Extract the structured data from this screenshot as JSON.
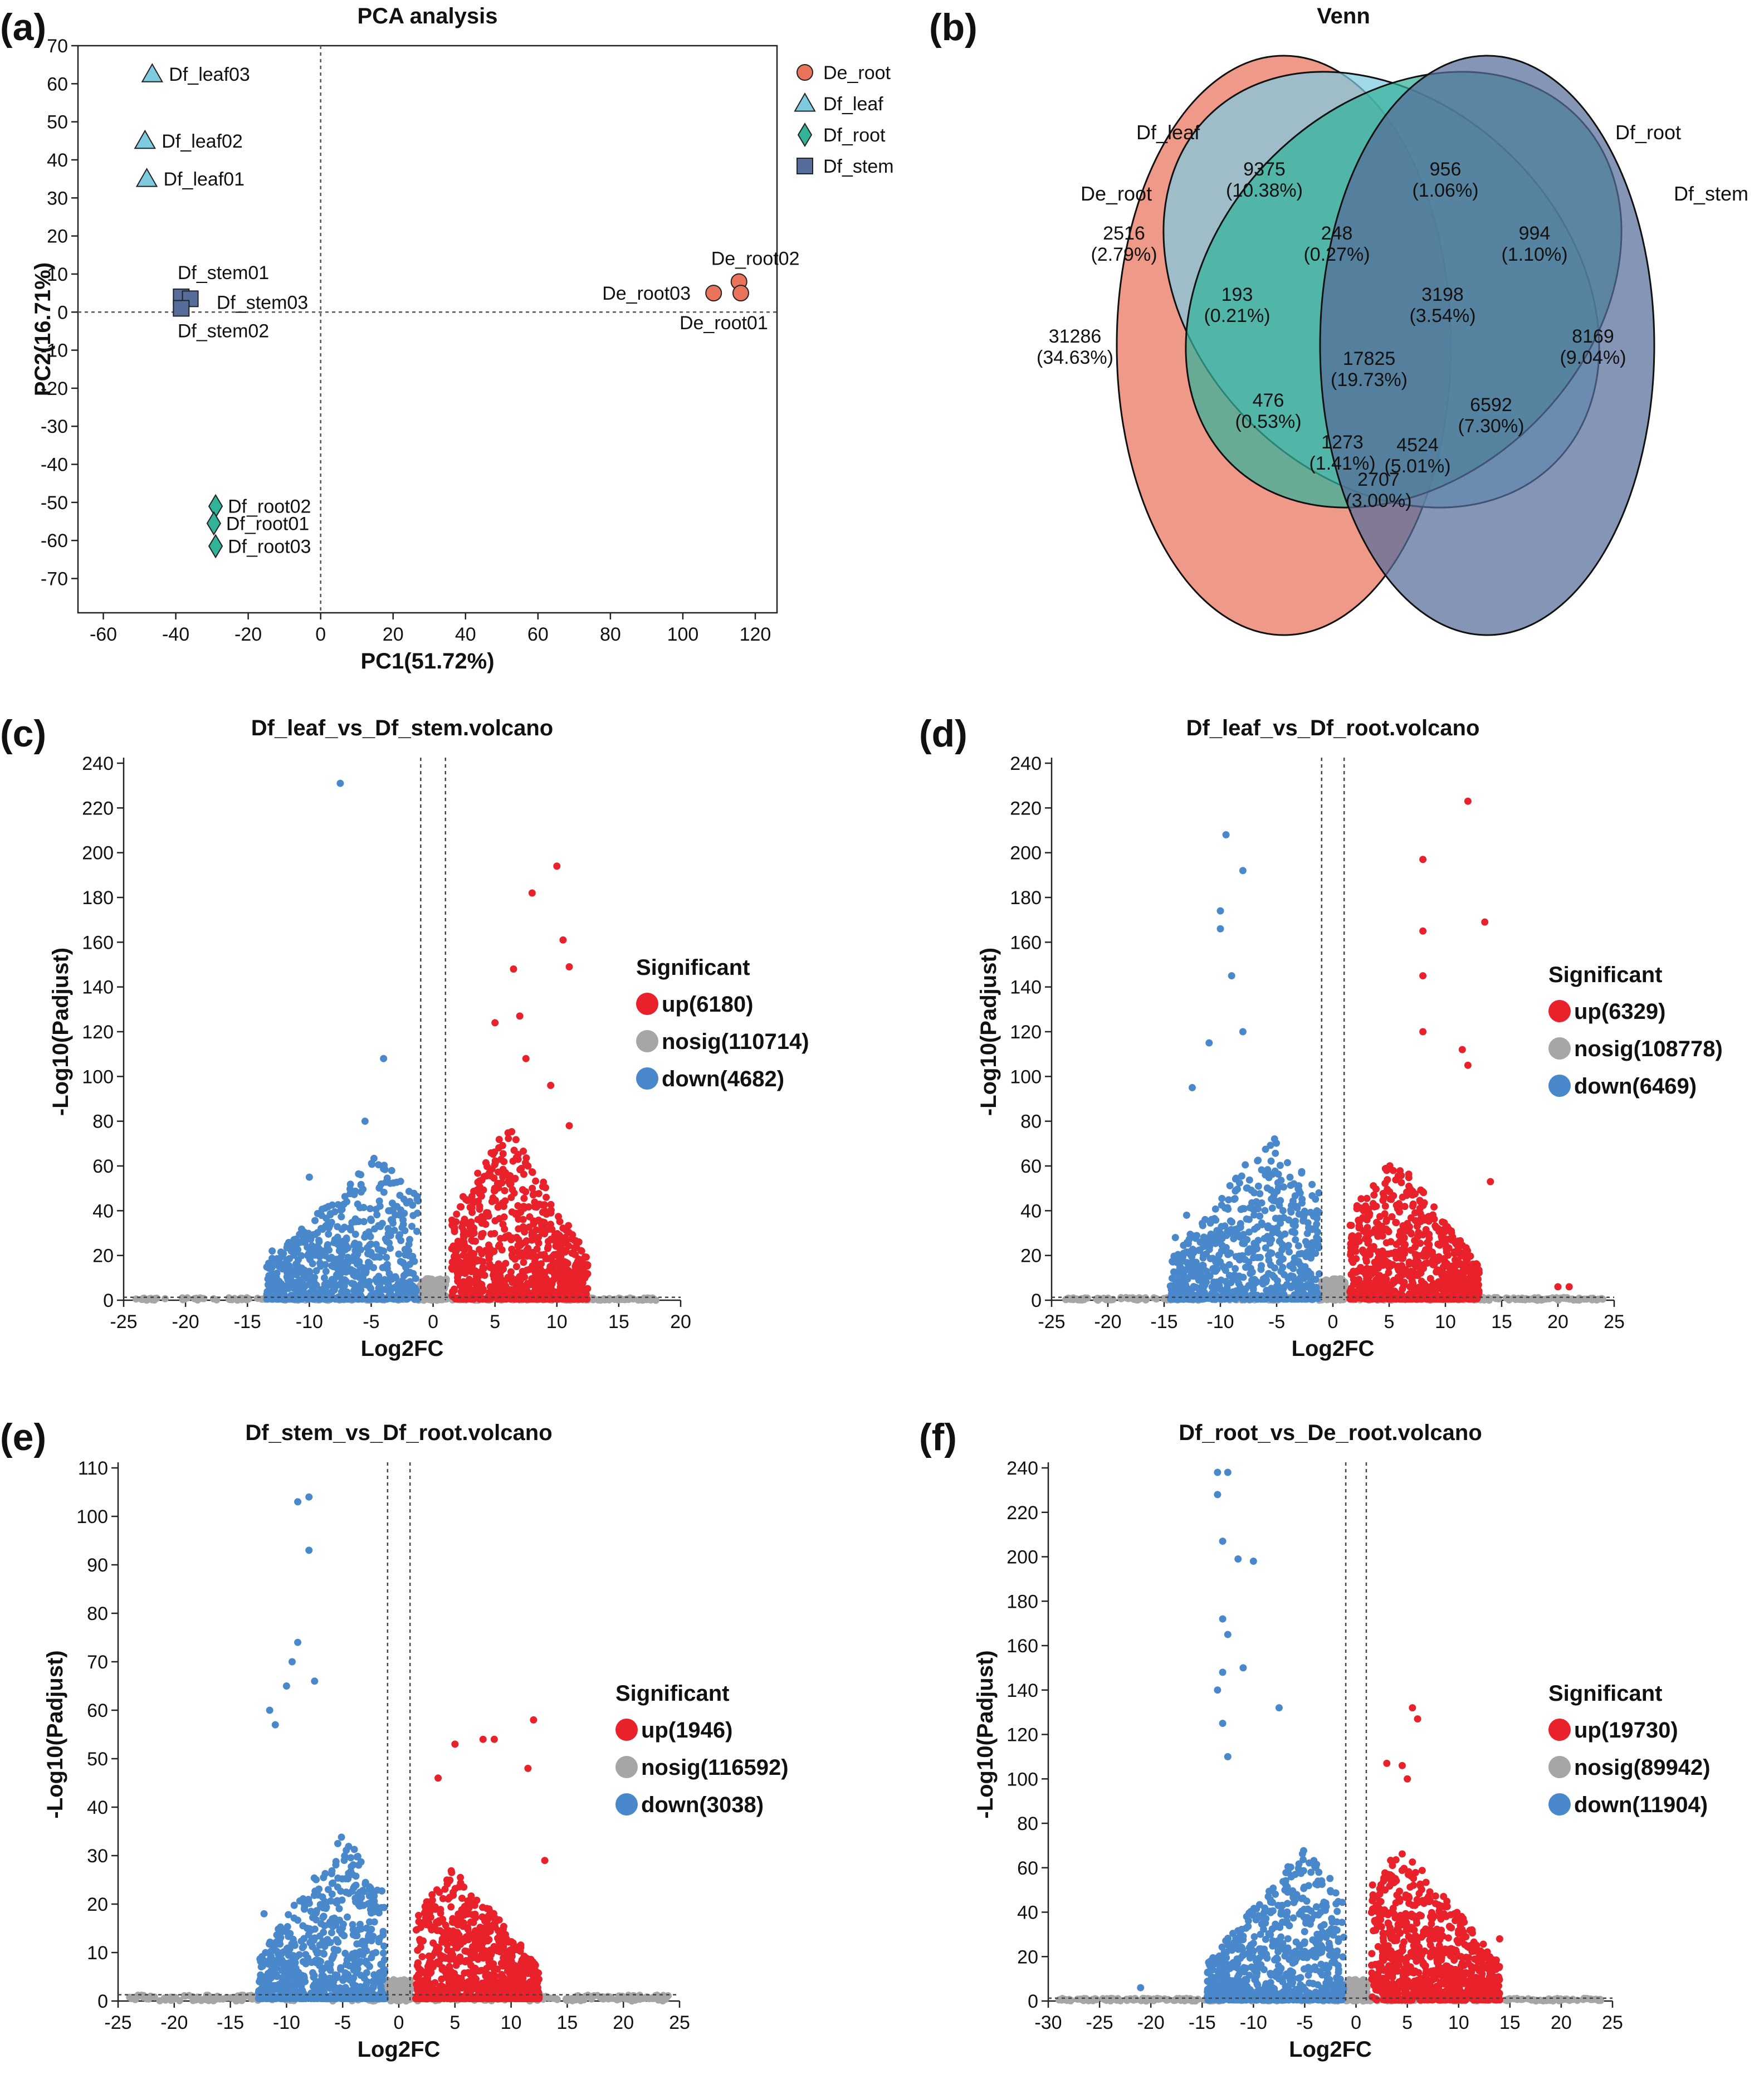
{
  "panels": {
    "a": "(a)",
    "b": "(b)",
    "c": "(c)",
    "d": "(d)",
    "e": "(e)",
    "f": "(f)"
  },
  "colors": {
    "De_root": "#e9735b",
    "Df_leaf": "#7ecbe0",
    "Df_root": "#33b29a",
    "Df_stem": "#566c9a",
    "up": "#e8212b",
    "nosig": "#a6a6a6",
    "down": "#4a88cc"
  },
  "chart_data": [
    {
      "id": "pca",
      "type": "scatter",
      "title": "PCA analysis",
      "xlabel": "PC1(51.72%)",
      "ylabel": "PC2(16.71%)",
      "xlim": [
        -67,
        126
      ],
      "ylim": [
        -79,
        70
      ],
      "xticks": [
        -60,
        -40,
        -20,
        0,
        20,
        40,
        60,
        80,
        100,
        120
      ],
      "yticks": [
        70,
        60,
        50,
        40,
        30,
        20,
        10,
        0,
        -10,
        -20,
        -30,
        -40,
        -50,
        -60,
        -70
      ],
      "legend": [
        "De_root",
        "Df_leaf",
        "Df_root",
        "Df_stem"
      ],
      "points": [
        {
          "label": "Df_leaf03",
          "group": "Df_leaf",
          "x": -46.5,
          "y": 62.5
        },
        {
          "label": "Df_leaf02",
          "group": "Df_leaf",
          "x": -48.5,
          "y": 45.0
        },
        {
          "label": "Df_leaf01",
          "group": "Df_leaf",
          "x": -48.0,
          "y": 35.0
        },
        {
          "label": "Df_stem01",
          "group": "Df_stem",
          "x": -38.5,
          "y": 4.0
        },
        {
          "label": "Df_stem03",
          "group": "Df_stem",
          "x": -36.0,
          "y": 3.5
        },
        {
          "label": "Df_stem02",
          "group": "Df_stem",
          "x": -38.5,
          "y": 1.0
        },
        {
          "label": "De_root02",
          "group": "De_root",
          "x": 115.5,
          "y": 8.0
        },
        {
          "label": "De_root03",
          "group": "De_root",
          "x": 108.5,
          "y": 5.0
        },
        {
          "label": "De_root01",
          "group": "De_root",
          "x": 116.0,
          "y": 5.0
        },
        {
          "label": "Df_root02",
          "group": "Df_root",
          "x": -29.0,
          "y": -51.0
        },
        {
          "label": "Df_root01",
          "group": "Df_root",
          "x": -29.5,
          "y": -55.5
        },
        {
          "label": "Df_root03",
          "group": "Df_root",
          "x": -29.0,
          "y": -61.5
        }
      ]
    },
    {
      "id": "venn",
      "type": "venn",
      "title": "Venn",
      "sets": [
        "De_root",
        "Df_leaf",
        "Df_root",
        "Df_stem"
      ],
      "regions": [
        {
          "sets": [
            "Df_leaf"
          ],
          "count": "9375",
          "pct": "(10.38%)"
        },
        {
          "sets": [
            "Df_root"
          ],
          "count": "956",
          "pct": "(1.06%)"
        },
        {
          "sets": [
            "De_root",
            "Df_leaf"
          ],
          "count": "2516",
          "pct": "(2.79%)"
        },
        {
          "sets": [
            "Df_leaf",
            "Df_root"
          ],
          "count": "248",
          "pct": "(0.27%)"
        },
        {
          "sets": [
            "Df_root",
            "Df_stem"
          ],
          "count": "994",
          "pct": "(1.10%)"
        },
        {
          "sets": [
            "De_root"
          ],
          "count": "31286",
          "pct": "(34.63%)"
        },
        {
          "sets": [
            "De_root",
            "Df_leaf",
            "Df_root"
          ],
          "count": "193",
          "pct": "(0.21%)"
        },
        {
          "sets": [
            "Df_leaf",
            "Df_root",
            "Df_stem"
          ],
          "count": "3198",
          "pct": "(3.54%)"
        },
        {
          "sets": [
            "Df_stem"
          ],
          "count": "8169",
          "pct": "(9.04%)"
        },
        {
          "sets": [
            "De_root",
            "Df_leaf",
            "Df_root",
            "Df_stem"
          ],
          "count": "17825",
          "pct": "(19.73%)"
        },
        {
          "sets": [
            "De_root",
            "Df_root"
          ],
          "count": "476",
          "pct": "(0.53%)"
        },
        {
          "sets": [
            "Df_leaf",
            "Df_stem"
          ],
          "count": "6592",
          "pct": "(7.30%)"
        },
        {
          "sets": [
            "De_root",
            "Df_root",
            "Df_stem"
          ],
          "count": "1273",
          "pct": "(1.41%)"
        },
        {
          "sets": [
            "De_root",
            "Df_leaf",
            "Df_stem"
          ],
          "count": "4524",
          "pct": "(5.01%)"
        },
        {
          "sets": [
            "De_root",
            "Df_stem"
          ],
          "count": "2707",
          "pct": "(3.00%)"
        }
      ]
    },
    {
      "id": "volcano_c",
      "type": "scatter",
      "title": "Df_leaf_vs_Df_stem.volcano",
      "xlabel": "Log2FC",
      "ylabel": "-Log10(Padjust)",
      "xlim": [
        -25,
        20
      ],
      "ylim": [
        0,
        240
      ],
      "xticks": [
        -25,
        -20,
        -15,
        -10,
        -5,
        0,
        5,
        10,
        15,
        20
      ],
      "yticks": [
        0,
        20,
        40,
        60,
        80,
        100,
        120,
        140,
        160,
        180,
        200,
        220,
        240
      ],
      "fc_threshold": 1,
      "p_threshold_line": 1.3,
      "legend_title": "Significant",
      "legend": [
        {
          "key": "up",
          "label": "up(6180)"
        },
        {
          "key": "nosig",
          "label": "nosig(110714)"
        },
        {
          "key": "down",
          "label": "down(4682)"
        }
      ],
      "up_profile": {
        "xmin": 1.5,
        "xmax": 12.5,
        "peakx": 6,
        "peaky": 80,
        "maxy": 195
      },
      "down_profile": {
        "xmin": -13.5,
        "xmax": -1.2,
        "peakx": -4.5,
        "peaky": 65,
        "maxy": 231
      },
      "nosig_xlim": [
        -24,
        18
      ],
      "highlights": [
        {
          "x": -7.5,
          "y": 231,
          "cls": "down"
        },
        {
          "x": -4,
          "y": 108,
          "cls": "down"
        },
        {
          "x": -5.5,
          "y": 80,
          "cls": "down"
        },
        {
          "x": -10,
          "y": 55,
          "cls": "down"
        },
        {
          "x": -13,
          "y": 22,
          "cls": "down"
        },
        {
          "x": -11,
          "y": 15,
          "cls": "down"
        },
        {
          "x": 10,
          "y": 194,
          "cls": "up"
        },
        {
          "x": 8,
          "y": 182,
          "cls": "up"
        },
        {
          "x": 10.5,
          "y": 161,
          "cls": "up"
        },
        {
          "x": 11,
          "y": 149,
          "cls": "up"
        },
        {
          "x": 6.5,
          "y": 148,
          "cls": "up"
        },
        {
          "x": 7,
          "y": 127,
          "cls": "up"
        },
        {
          "x": 5,
          "y": 124,
          "cls": "up"
        },
        {
          "x": 7.5,
          "y": 108,
          "cls": "up"
        },
        {
          "x": 9.5,
          "y": 96,
          "cls": "up"
        },
        {
          "x": 11,
          "y": 78,
          "cls": "up"
        },
        {
          "x": 12,
          "y": 22,
          "cls": "up"
        }
      ]
    },
    {
      "id": "volcano_d",
      "type": "scatter",
      "title": "Df_leaf_vs_Df_root.volcano",
      "xlabel": "Log2FC",
      "ylabel": "-Log10(Padjust)",
      "xlim": [
        -25,
        25
      ],
      "ylim": [
        0,
        240
      ],
      "xticks": [
        -25,
        -20,
        -15,
        -10,
        -5,
        0,
        5,
        10,
        15,
        20,
        25
      ],
      "yticks": [
        0,
        20,
        40,
        60,
        80,
        100,
        120,
        140,
        160,
        180,
        200,
        220,
        240
      ],
      "fc_threshold": 1,
      "p_threshold_line": 1.3,
      "legend_title": "Significant",
      "legend": [
        {
          "key": "up",
          "label": "up(6329)"
        },
        {
          "key": "nosig",
          "label": "nosig(108778)"
        },
        {
          "key": "down",
          "label": "down(6469)"
        }
      ],
      "up_profile": {
        "xmin": 1.5,
        "xmax": 13,
        "peakx": 5.5,
        "peaky": 65,
        "maxy": 223
      },
      "down_profile": {
        "xmin": -14.5,
        "xmax": -1.2,
        "peakx": -5.5,
        "peaky": 75,
        "maxy": 208
      },
      "nosig_xlim": [
        -24,
        24
      ],
      "highlights": [
        {
          "x": -9.5,
          "y": 208,
          "cls": "down"
        },
        {
          "x": -8,
          "y": 192,
          "cls": "down"
        },
        {
          "x": -10,
          "y": 174,
          "cls": "down"
        },
        {
          "x": -10,
          "y": 166,
          "cls": "down"
        },
        {
          "x": -9,
          "y": 145,
          "cls": "down"
        },
        {
          "x": -8,
          "y": 120,
          "cls": "down"
        },
        {
          "x": -11,
          "y": 115,
          "cls": "down"
        },
        {
          "x": -12.5,
          "y": 95,
          "cls": "down"
        },
        {
          "x": -13,
          "y": 38,
          "cls": "down"
        },
        {
          "x": -14,
          "y": 28,
          "cls": "down"
        },
        {
          "x": 12,
          "y": 223,
          "cls": "up"
        },
        {
          "x": 8,
          "y": 197,
          "cls": "up"
        },
        {
          "x": 13.5,
          "y": 169,
          "cls": "up"
        },
        {
          "x": 8,
          "y": 165,
          "cls": "up"
        },
        {
          "x": 8,
          "y": 145,
          "cls": "up"
        },
        {
          "x": 8,
          "y": 120,
          "cls": "up"
        },
        {
          "x": 11.5,
          "y": 112,
          "cls": "up"
        },
        {
          "x": 12,
          "y": 105,
          "cls": "up"
        },
        {
          "x": 14,
          "y": 53,
          "cls": "up"
        },
        {
          "x": 20,
          "y": 6,
          "cls": "up"
        },
        {
          "x": 21,
          "y": 6,
          "cls": "up"
        }
      ]
    },
    {
      "id": "volcano_e",
      "type": "scatter",
      "title": "Df_stem_vs_Df_root.volcano",
      "xlabel": "Log2FC",
      "ylabel": "-Log10(Padjust)",
      "xlim": [
        -25,
        25
      ],
      "ylim": [
        0,
        110
      ],
      "xticks": [
        -25,
        -20,
        -15,
        -10,
        -5,
        0,
        5,
        10,
        15,
        20,
        25
      ],
      "yticks": [
        0,
        10,
        20,
        30,
        40,
        50,
        60,
        70,
        80,
        90,
        100,
        110
      ],
      "fc_threshold": 1,
      "p_threshold_line": 1.3,
      "legend_title": "Significant",
      "legend": [
        {
          "key": "up",
          "label": "up(1946)"
        },
        {
          "key": "nosig",
          "label": "nosig(116592)"
        },
        {
          "key": "down",
          "label": "down(3038)"
        }
      ],
      "up_profile": {
        "xmin": 1.5,
        "xmax": 12.5,
        "peakx": 5,
        "peaky": 28,
        "maxy": 58
      },
      "down_profile": {
        "xmin": -12.5,
        "xmax": -1.2,
        "peakx": -5,
        "peaky": 35,
        "maxy": 104
      },
      "nosig_xlim": [
        -24,
        24
      ],
      "highlights": [
        {
          "x": -8,
          "y": 104,
          "cls": "down"
        },
        {
          "x": -9,
          "y": 103,
          "cls": "down"
        },
        {
          "x": -8,
          "y": 93,
          "cls": "down"
        },
        {
          "x": -9,
          "y": 74,
          "cls": "down"
        },
        {
          "x": -9.5,
          "y": 70,
          "cls": "down"
        },
        {
          "x": -7.5,
          "y": 66,
          "cls": "down"
        },
        {
          "x": -10,
          "y": 65,
          "cls": "down"
        },
        {
          "x": -11.5,
          "y": 60,
          "cls": "down"
        },
        {
          "x": -11,
          "y": 57,
          "cls": "down"
        },
        {
          "x": -12,
          "y": 18,
          "cls": "down"
        },
        {
          "x": 12,
          "y": 58,
          "cls": "up"
        },
        {
          "x": 7.5,
          "y": 54,
          "cls": "up"
        },
        {
          "x": 8.5,
          "y": 54,
          "cls": "up"
        },
        {
          "x": 5,
          "y": 53,
          "cls": "up"
        },
        {
          "x": 11.5,
          "y": 48,
          "cls": "up"
        },
        {
          "x": 3.5,
          "y": 46,
          "cls": "up"
        },
        {
          "x": 13,
          "y": 29,
          "cls": "up"
        }
      ]
    },
    {
      "id": "volcano_f",
      "type": "scatter",
      "title": "Df_root_vs_De_root.volcano",
      "xlabel": "Log2FC",
      "ylabel": "-Log10(Padjust)",
      "xlim": [
        -30,
        25
      ],
      "ylim": [
        0,
        240
      ],
      "xticks": [
        -30,
        -25,
        -20,
        -15,
        -10,
        -5,
        0,
        5,
        10,
        15,
        20,
        25
      ],
      "yticks": [
        0,
        20,
        40,
        60,
        80,
        100,
        120,
        140,
        160,
        180,
        200,
        220,
        240
      ],
      "fc_threshold": 1,
      "p_threshold_line": 1.3,
      "legend_title": "Significant",
      "legend": [
        {
          "key": "up",
          "label": "up(19730)"
        },
        {
          "key": "nosig",
          "label": "nosig(89942)"
        },
        {
          "key": "down",
          "label": "down(11904)"
        }
      ],
      "up_profile": {
        "xmin": 1.5,
        "xmax": 14,
        "peakx": 4.5,
        "peaky": 70,
        "maxy": 132
      },
      "down_profile": {
        "xmin": -14.5,
        "xmax": -1.2,
        "peakx": -5,
        "peaky": 70,
        "maxy": 238
      },
      "nosig_xlim": [
        -29,
        24
      ],
      "highlights": [
        {
          "x": -13.5,
          "y": 238,
          "cls": "down"
        },
        {
          "x": -12.5,
          "y": 238,
          "cls": "down"
        },
        {
          "x": -13.5,
          "y": 228,
          "cls": "down"
        },
        {
          "x": -13,
          "y": 207,
          "cls": "down"
        },
        {
          "x": -10,
          "y": 198,
          "cls": "down"
        },
        {
          "x": -11.5,
          "y": 199,
          "cls": "down"
        },
        {
          "x": -13,
          "y": 172,
          "cls": "down"
        },
        {
          "x": -12.5,
          "y": 165,
          "cls": "down"
        },
        {
          "x": -11,
          "y": 150,
          "cls": "down"
        },
        {
          "x": -13,
          "y": 148,
          "cls": "down"
        },
        {
          "x": -13.5,
          "y": 140,
          "cls": "down"
        },
        {
          "x": -7.5,
          "y": 132,
          "cls": "down"
        },
        {
          "x": -13,
          "y": 125,
          "cls": "down"
        },
        {
          "x": -12.5,
          "y": 110,
          "cls": "down"
        },
        {
          "x": -21,
          "y": 6,
          "cls": "down"
        },
        {
          "x": 5.5,
          "y": 132,
          "cls": "up"
        },
        {
          "x": 6,
          "y": 127,
          "cls": "up"
        },
        {
          "x": 3,
          "y": 107,
          "cls": "up"
        },
        {
          "x": 4.5,
          "y": 106,
          "cls": "up"
        },
        {
          "x": 5,
          "y": 100,
          "cls": "up"
        },
        {
          "x": 14,
          "y": 28,
          "cls": "up"
        }
      ]
    }
  ]
}
